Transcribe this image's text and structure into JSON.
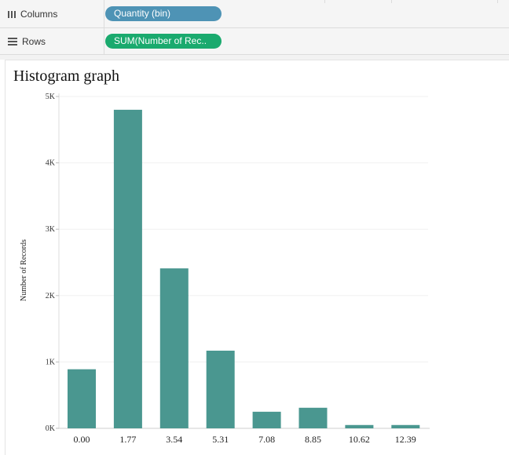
{
  "shelves": {
    "columns": {
      "label": "Columns",
      "pill": "Quantity (bin)",
      "pill_color": "#4e93b5"
    },
    "rows": {
      "label": "Rows",
      "pill": "SUM(Number of Rec..",
      "pill_color": "#1aaa6e"
    }
  },
  "chart_data": {
    "type": "bar",
    "title": "Histogram graph",
    "xlabel": "",
    "ylabel": "Number of Records",
    "categories": [
      "0.00",
      "1.77",
      "3.54",
      "5.31",
      "7.08",
      "8.85",
      "10.62",
      "12.39"
    ],
    "values": [
      890,
      4800,
      2410,
      1170,
      250,
      310,
      50,
      50
    ],
    "ylim": [
      0,
      5000
    ],
    "yticks": [
      0,
      1000,
      2000,
      3000,
      4000,
      5000
    ],
    "ytick_labels": [
      "0K",
      "1K",
      "2K",
      "3K",
      "4K",
      "5K"
    ],
    "bar_color": "#4a9790",
    "grid": true
  }
}
